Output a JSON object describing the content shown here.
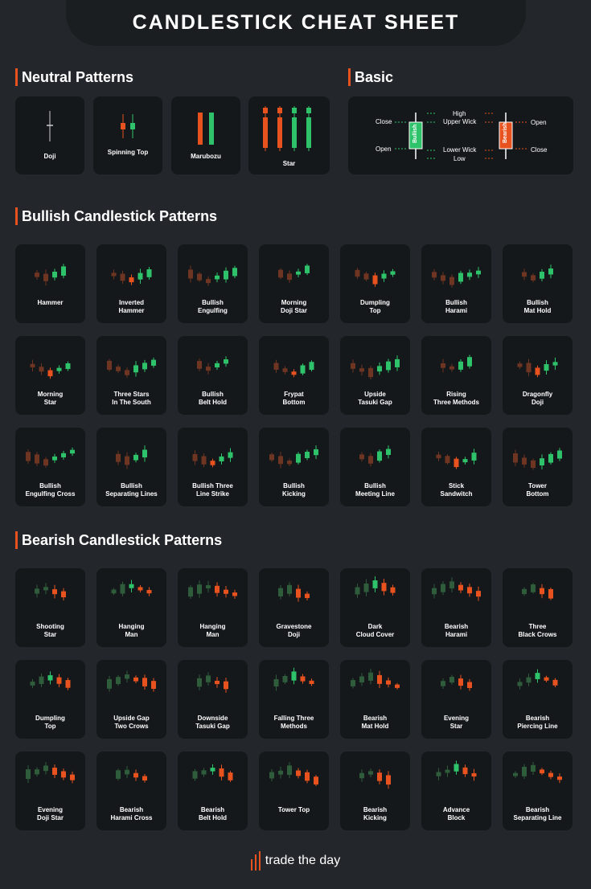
{
  "header": {
    "title": "CANDLESTICK CHEAT SHEET"
  },
  "colors": {
    "bull": "#2ec26a",
    "bear": "#e8521f",
    "dim_bull": "#2f5d3c",
    "dim_bear": "#6e3522",
    "accent": "#e8521f"
  },
  "sections": {
    "neutral": "Neutral Patterns",
    "basic": "Basic",
    "bullish": "Bullish Candlestick Patterns",
    "bearish": "Bearish Candlestick Patterns"
  },
  "neutral": [
    {
      "label": "Doji"
    },
    {
      "label": "Spinning Top"
    },
    {
      "label": "Marubozu"
    },
    {
      "label": "Star"
    }
  ],
  "basic": {
    "bullish": "Bullish",
    "bearish": "Bearish",
    "close_left": "Close",
    "open_left": "Open",
    "high": "High",
    "upper_wick": "Upper Wick",
    "lower_wick": "Lower Wick",
    "low": "Low",
    "open_right": "Open",
    "close_right": "Close"
  },
  "bullish": [
    {
      "label": "Hammer"
    },
    {
      "label": "Inverted\nHammer"
    },
    {
      "label": "Bullish\nEngulfing"
    },
    {
      "label": "Morning\nDoji  Star"
    },
    {
      "label": "Dumpling\nTop"
    },
    {
      "label": "Bullish\nHarami"
    },
    {
      "label": "Bullish\nMat Hold"
    },
    {
      "label": "Morning\nStar"
    },
    {
      "label": "Three Stars\nIn The South"
    },
    {
      "label": "Bullish\nBelt Hold"
    },
    {
      "label": "Frypat\nBottom"
    },
    {
      "label": "Upside\nTasuki Gap"
    },
    {
      "label": "Rising\nThree Methods"
    },
    {
      "label": "Dragonfly\nDoji"
    },
    {
      "label": "Bullish\nEngulfing Cross"
    },
    {
      "label": "Bullish\nSeparating Lines"
    },
    {
      "label": "Bullish Three\nLine Strike"
    },
    {
      "label": "Bullish\nKicking"
    },
    {
      "label": "Bullish\nMeeting Line"
    },
    {
      "label": "Stick\nSandwitch"
    },
    {
      "label": "Tower\nBottom"
    }
  ],
  "bearish": [
    {
      "label": "Shooting\nStar"
    },
    {
      "label": "Hanging\nMan"
    },
    {
      "label": "Hanging\nMan"
    },
    {
      "label": "Gravestone\nDoji"
    },
    {
      "label": "Dark\nCloud Cover"
    },
    {
      "label": "Bearish\nHarami"
    },
    {
      "label": "Three\nBlack Crows"
    },
    {
      "label": "Dumpling\nTop"
    },
    {
      "label": "Upside Gap\nTwo Crows"
    },
    {
      "label": "Downside\nTasuki Gap"
    },
    {
      "label": "Falling Three\nMethods"
    },
    {
      "label": "Bearish\nMat Hold"
    },
    {
      "label": "Evening\nStar"
    },
    {
      "label": "Bearish\nPiercing Line"
    },
    {
      "label": "Evening\nDoji Star"
    },
    {
      "label": "Bearish\nHarami Cross"
    },
    {
      "label": "Bearish\nBelt Hold"
    },
    {
      "label": "Tower Top"
    },
    {
      "label": "Bearish\nKicking"
    },
    {
      "label": "Advance\nBlock"
    },
    {
      "label": "Bearish\nSeparating Line"
    }
  ],
  "footer": {
    "brand": "trade the day",
    "logo_icon": "candle-bars-icon"
  }
}
